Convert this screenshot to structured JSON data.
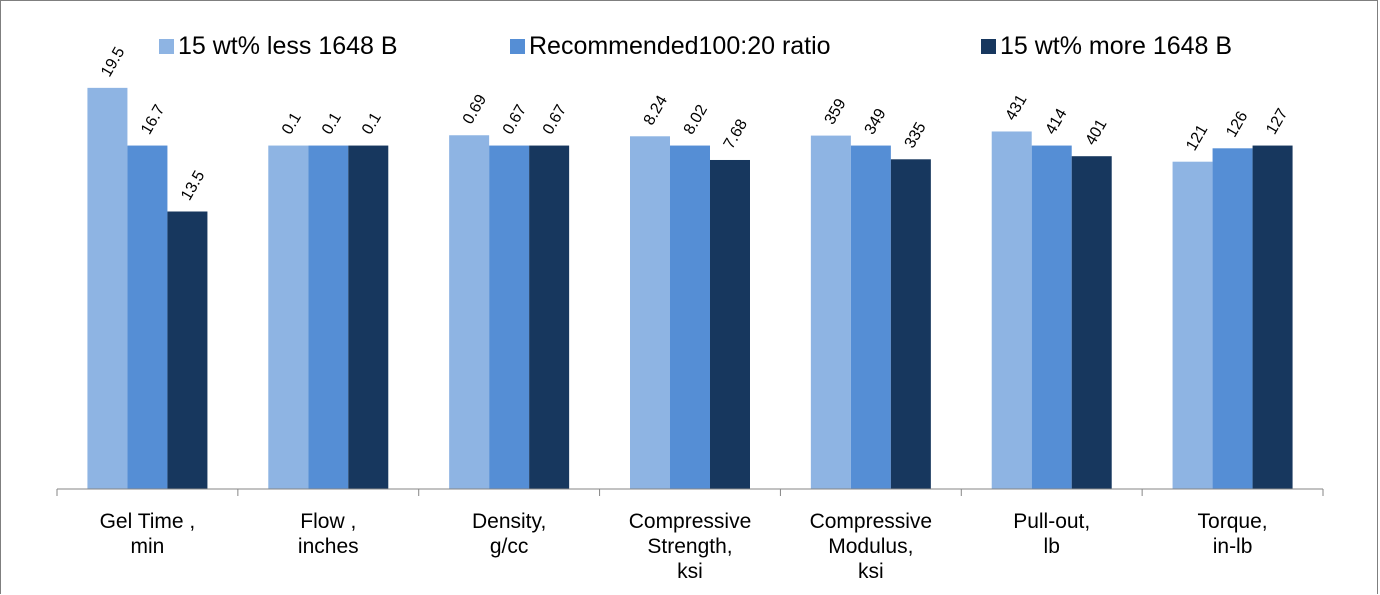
{
  "chart_data": {
    "type": "bar",
    "categories": [
      [
        "Gel Time ,",
        "min"
      ],
      [
        "Flow ,",
        "inches"
      ],
      [
        "Density,",
        "g/cc"
      ],
      [
        "Compressive",
        "Strength,",
        "ksi"
      ],
      [
        "Compressive",
        "Modulus,",
        "ksi"
      ],
      [
        "Pull-out,",
        "lb"
      ],
      [
        "Torque,",
        "in-lb"
      ]
    ],
    "series": [
      {
        "name": "15 wt% less 1648 B",
        "color": "#8eb4e3",
        "labels": [
          "19.5",
          "0.1",
          "0.69",
          "8.24",
          "359",
          "431",
          "121"
        ],
        "relative": [
          1.168,
          1.0,
          1.03,
          1.027,
          1.029,
          1.041,
          0.953
        ]
      },
      {
        "name": "Recommended100:20 ratio",
        "color": "#558ed5",
        "labels": [
          "16.7",
          "0.1",
          "0.67",
          "8.02",
          "349",
          "414",
          "126"
        ],
        "relative": [
          1.0,
          1.0,
          1.0,
          1.0,
          1.0,
          1.0,
          0.992
        ]
      },
      {
        "name": "15 wt% more 1648 B",
        "color": "#17375e",
        "labels": [
          "13.5",
          "0.1",
          "0.67",
          "7.68",
          "335",
          "401",
          "127"
        ],
        "relative": [
          0.808,
          1.0,
          1.0,
          0.958,
          0.96,
          0.969,
          1.0
        ]
      }
    ],
    "ylim": [
      0,
      1.22
    ],
    "grid": false,
    "legend_position": "top"
  }
}
